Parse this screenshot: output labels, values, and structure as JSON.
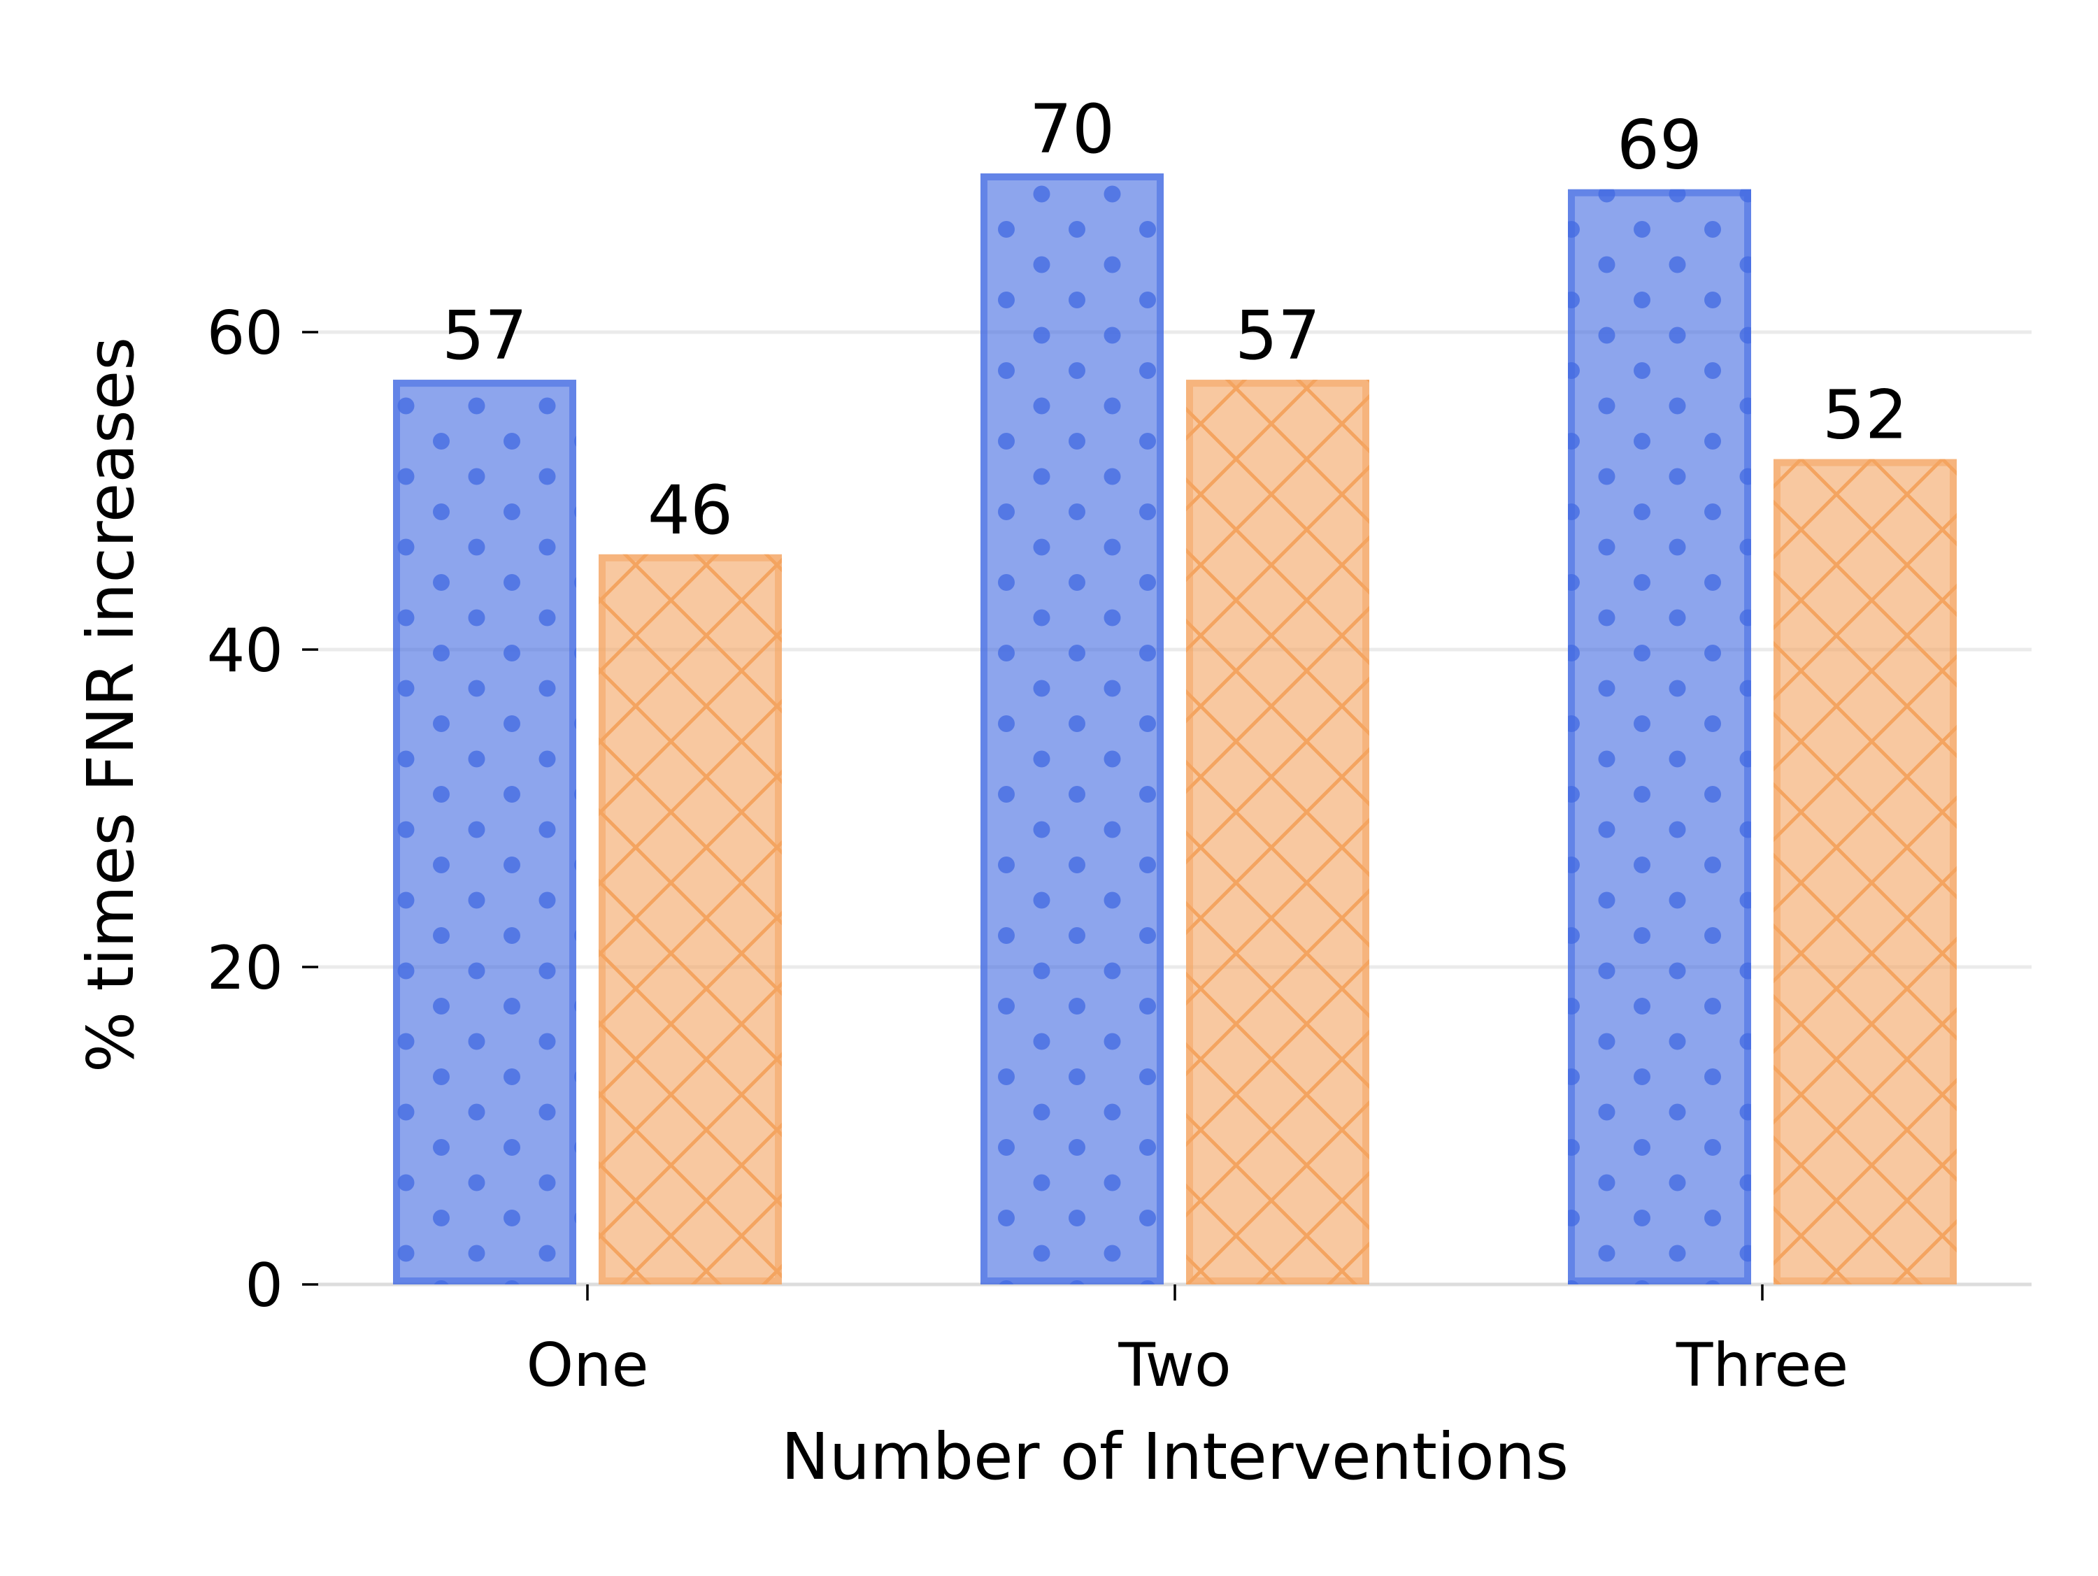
{
  "chart_data": {
    "type": "bar",
    "categories": [
      "One",
      "Two",
      "Three"
    ],
    "series": [
      {
        "values": [
          57,
          70,
          69
        ],
        "color": "#4169e1",
        "pattern": "dots"
      },
      {
        "values": [
          46,
          57,
          52
        ],
        "color": "#f4a460",
        "pattern": "crosshatch"
      }
    ],
    "data_labels": [
      [
        "57",
        "70",
        "69"
      ],
      [
        "46",
        "57",
        "52"
      ]
    ],
    "title": "",
    "xlabel": "Number of Interventions",
    "ylabel": "% times FNR increases",
    "ylim": [
      0,
      70
    ],
    "yticks": [
      0,
      20,
      40,
      60
    ],
    "ytick_labels": [
      "0",
      "20",
      "40",
      "60"
    ],
    "grid": "horizontal",
    "legend": "none"
  }
}
